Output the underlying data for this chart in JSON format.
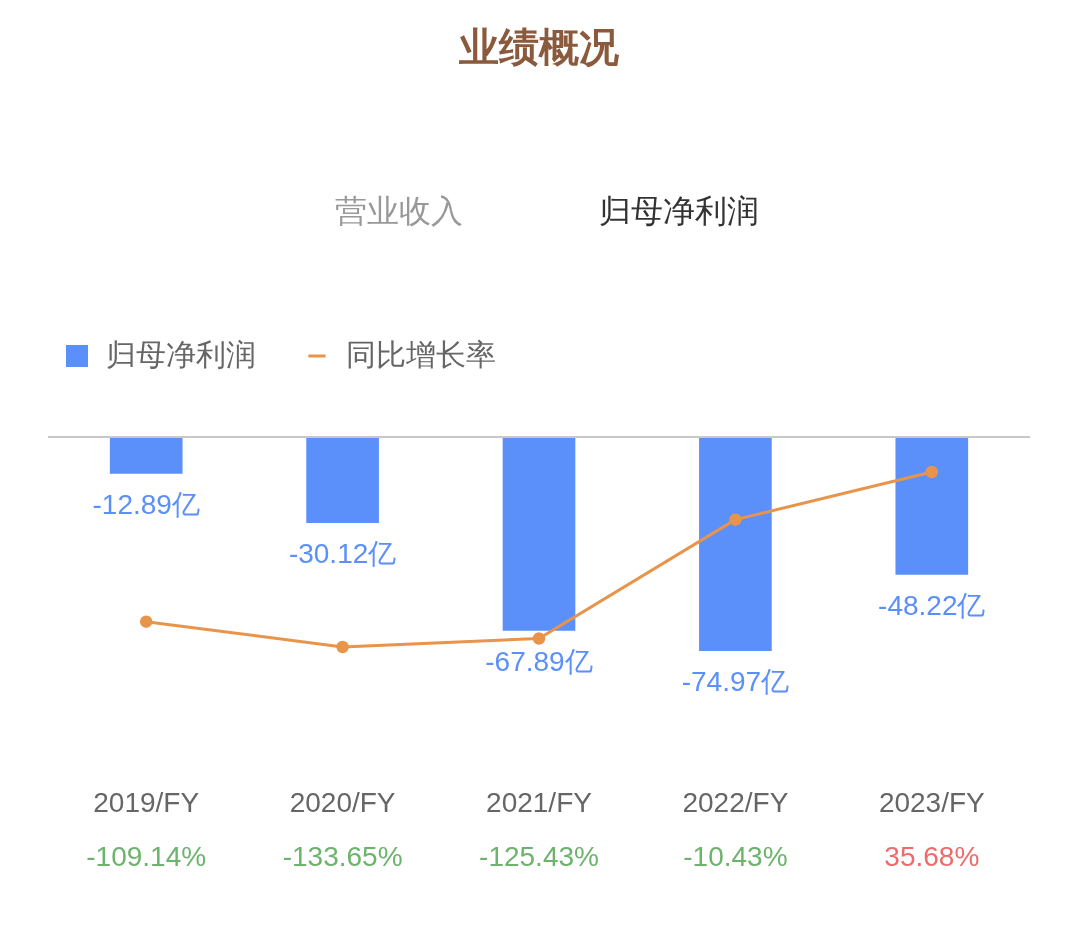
{
  "chart_data": {
    "type": "bar",
    "title": "业绩概况",
    "annotations": [
      "营业收入",
      "归母净利润"
    ],
    "categories": [
      "2019/FY",
      "2020/FY",
      "2021/FY",
      "2022/FY",
      "2023/FY"
    ],
    "series": [
      {
        "name": "归母净利润",
        "color": "#5b8ff9",
        "values": [
          -12.89,
          -30.12,
          -67.89,
          -74.97,
          -48.22
        ],
        "value_labels": [
          "-12.89亿",
          "-30.12亿",
          "-67.89亿",
          "-74.97亿",
          "-48.22亿"
        ]
      },
      {
        "name": "同比增长率",
        "type": "line",
        "axis": "y2",
        "color": "#e8944a",
        "values": [
          -109.14,
          -133.65,
          -125.43,
          -10.43,
          35.68
        ],
        "value_labels": [
          "-109.14%",
          "-133.65%",
          "-125.43%",
          "-10.43%",
          "35.68%"
        ]
      }
    ],
    "tick_labels": "x",
    "legend": "top left",
    "marker": "circle",
    "ref_lines": [
      {
        "axis": "y",
        "value": 0,
        "color": "#c8c8c8"
      }
    ]
  }
}
